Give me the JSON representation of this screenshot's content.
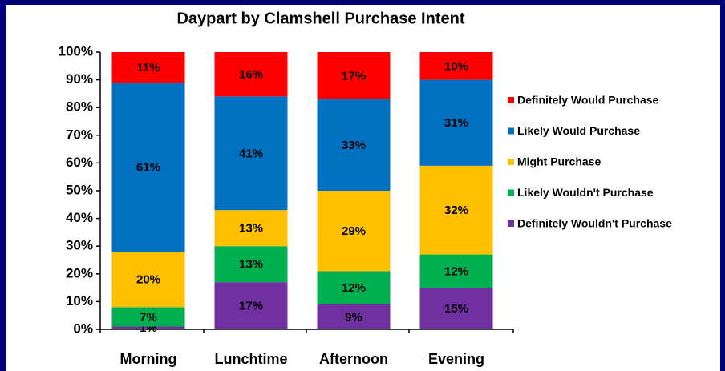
{
  "chart_data": {
    "type": "stacked_bar",
    "title": "Daypart by Clamshell Purchase Intent",
    "categories": [
      "Morning",
      "Lunchtime",
      "Afternoon",
      "Evening"
    ],
    "series": [
      {
        "name": "Definitely Wouldn't Purchase",
        "color": "#7030a0",
        "values": [
          1,
          17,
          9,
          15
        ],
        "value_labels": [
          "1%",
          "17%",
          "9%",
          "15%"
        ]
      },
      {
        "name": "Likely Wouldn't Purchase",
        "color": "#00b050",
        "values": [
          7,
          13,
          12,
          12
        ],
        "value_labels": [
          "7%",
          "13%",
          "12%",
          "12%"
        ]
      },
      {
        "name": "Might Purchase",
        "color": "#ffc000",
        "values": [
          20,
          13,
          29,
          32
        ],
        "value_labels": [
          "20%",
          "13%",
          "29%",
          "32%"
        ]
      },
      {
        "name": "Likely Would Purchase",
        "color": "#0070c0",
        "values": [
          61,
          41,
          33,
          31
        ],
        "value_labels": [
          "61%",
          "41%",
          "33%",
          "31%"
        ]
      },
      {
        "name": "Definitely Would Purchase",
        "color": "#ff0000",
        "values": [
          11,
          16,
          17,
          10
        ],
        "value_labels": [
          "11%",
          "16%",
          "17%",
          "10%"
        ]
      }
    ],
    "ylim": [
      0,
      100
    ],
    "yticks": [
      {
        "value": 0,
        "label": "0%"
      },
      {
        "value": 10,
        "label": "10%"
      },
      {
        "value": 20,
        "label": "20%"
      },
      {
        "value": 30,
        "label": "30%"
      },
      {
        "value": 40,
        "label": "40%"
      },
      {
        "value": 50,
        "label": "50%"
      },
      {
        "value": 60,
        "label": "60%"
      },
      {
        "value": 70,
        "label": "70%"
      },
      {
        "value": 80,
        "label": "80%"
      },
      {
        "value": 90,
        "label": "90%"
      },
      {
        "value": 100,
        "label": "100%"
      }
    ],
    "legend": "right",
    "grid": false
  }
}
